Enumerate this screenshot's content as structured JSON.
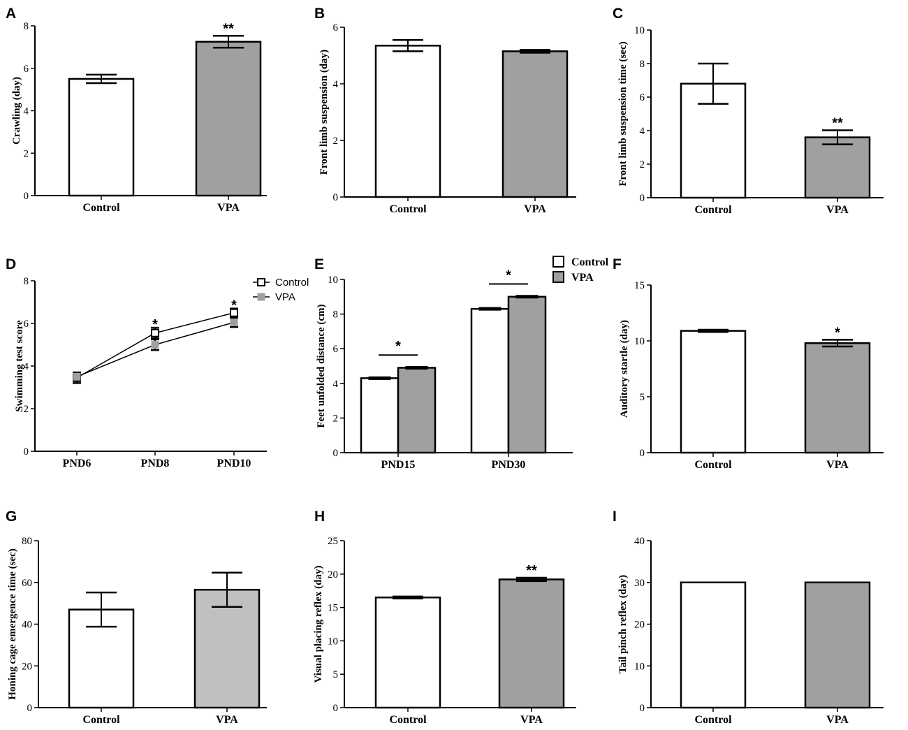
{
  "chart_data": [
    {
      "panel": "A",
      "type": "bar",
      "ylabel": "Crawling (day)",
      "ylim": [
        0,
        8
      ],
      "yticks": [
        0,
        2,
        4,
        6,
        8
      ],
      "categories": [
        "Control",
        "VPA"
      ],
      "values": [
        5.5,
        7.25
      ],
      "errors": [
        0.2,
        0.28
      ],
      "colors": [
        "#ffffff",
        "#a0a0a0"
      ],
      "annotations": [
        "",
        "**"
      ]
    },
    {
      "panel": "B",
      "type": "bar",
      "ylabel": "Front limb suspension (day)",
      "ylim": [
        0,
        6
      ],
      "yticks": [
        0,
        2,
        4,
        6
      ],
      "categories": [
        "Control",
        "VPA"
      ],
      "values": [
        5.35,
        5.15
      ],
      "errors": [
        0.2,
        0.05
      ],
      "colors": [
        "#ffffff",
        "#a0a0a0"
      ],
      "annotations": [
        "",
        ""
      ]
    },
    {
      "panel": "C",
      "type": "bar",
      "ylabel": "Front limb suspension time (sec)",
      "ylim": [
        0,
        10
      ],
      "yticks": [
        0,
        2,
        4,
        6,
        8,
        10
      ],
      "categories": [
        "Control",
        "VPA"
      ],
      "values": [
        6.8,
        3.6
      ],
      "errors": [
        1.2,
        0.42
      ],
      "colors": [
        "#ffffff",
        "#a0a0a0"
      ],
      "annotations": [
        "",
        "**"
      ]
    },
    {
      "panel": "D",
      "type": "line",
      "ylabel": "Swimming test score",
      "ylim": [
        0,
        8
      ],
      "yticks": [
        0,
        2,
        4,
        6,
        8
      ],
      "categories": [
        "PND6",
        "PND8",
        "PND10"
      ],
      "series": [
        {
          "name": "Control",
          "values": [
            3.45,
            5.55,
            6.5
          ],
          "errors": [
            0.25,
            0.25,
            0.2
          ],
          "color": "#000000"
        },
        {
          "name": "VPA",
          "values": [
            3.5,
            5.0,
            6.05
          ],
          "errors": [
            0.2,
            0.25,
            0.22
          ],
          "color": "#a0a0a0"
        }
      ],
      "annotations": [
        "",
        "*",
        "*"
      ]
    },
    {
      "panel": "E",
      "type": "bar",
      "ylabel": "Feet unfolded distance (cm)",
      "ylim": [
        0,
        10
      ],
      "yticks": [
        0,
        2,
        4,
        6,
        8,
        10
      ],
      "categories": [
        "PND15",
        "PND30"
      ],
      "series": [
        {
          "name": "Control",
          "values": [
            4.3,
            8.3
          ],
          "errors": [
            0.05,
            0.05
          ],
          "color": "#ffffff"
        },
        {
          "name": "VPA",
          "values": [
            4.9,
            9.0
          ],
          "errors": [
            0.05,
            0.05
          ],
          "color": "#a0a0a0"
        }
      ],
      "annotations": [
        "*",
        "*"
      ]
    },
    {
      "panel": "F",
      "type": "bar",
      "ylabel": "Auditory startle (day)",
      "ylim": [
        0,
        15
      ],
      "yticks": [
        0,
        5,
        10,
        15
      ],
      "categories": [
        "Control",
        "VPA"
      ],
      "values": [
        10.9,
        9.8
      ],
      "errors": [
        0.1,
        0.3
      ],
      "colors": [
        "#ffffff",
        "#a0a0a0"
      ],
      "annotations": [
        "",
        "*"
      ]
    },
    {
      "panel": "G",
      "type": "bar",
      "ylabel": "Honing cage emergence time (sec)",
      "ylim": [
        0,
        80
      ],
      "yticks": [
        0,
        20,
        40,
        60,
        80
      ],
      "categories": [
        "Control",
        "VPA"
      ],
      "values": [
        47,
        56.5
      ],
      "errors": [
        8.2,
        8.2
      ],
      "colors": [
        "#ffffff",
        "#c0c0c0"
      ],
      "annotations": [
        "",
        ""
      ]
    },
    {
      "panel": "H",
      "type": "bar",
      "ylabel": "Visual placing reflex (day)",
      "ylim": [
        0,
        25
      ],
      "yticks": [
        0,
        5,
        10,
        15,
        20,
        25
      ],
      "categories": [
        "Control",
        "VPA"
      ],
      "values": [
        16.5,
        19.2
      ],
      "errors": [
        0.15,
        0.25
      ],
      "colors": [
        "#ffffff",
        "#a0a0a0"
      ],
      "annotations": [
        "",
        "**"
      ]
    },
    {
      "panel": "I",
      "type": "bar",
      "ylabel": "Tail pinch reflex (day)",
      "ylim": [
        0,
        40
      ],
      "yticks": [
        0,
        10,
        20,
        30,
        40
      ],
      "categories": [
        "Control",
        "VPA"
      ],
      "values": [
        30,
        30
      ],
      "errors": [
        0,
        0
      ],
      "colors": [
        "#ffffff",
        "#a0a0a0"
      ],
      "annotations": [
        "",
        ""
      ]
    }
  ]
}
